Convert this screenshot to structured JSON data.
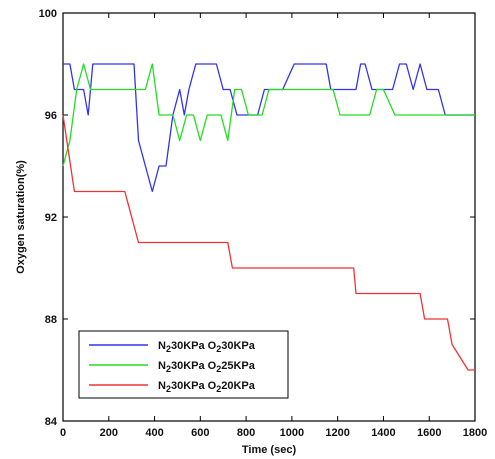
{
  "chart_data": {
    "type": "line",
    "title": "",
    "xlabel": "Time (sec)",
    "ylabel": "Oxygen saturation(%)",
    "xlim": [
      0,
      1800
    ],
    "ylim": [
      84,
      100
    ],
    "xticks": [
      0,
      200,
      400,
      600,
      800,
      1000,
      1200,
      1400,
      1600,
      1800
    ],
    "yticks": [
      84,
      88,
      92,
      96,
      100
    ],
    "grid": false,
    "legend_position": "bottom-left",
    "series": [
      {
        "name": "N230KPa O230KPa",
        "legend": {
          "a": "N",
          "a_sub": "2",
          "b": "30KPa O",
          "b_sub": "2",
          "c": "30KPa"
        },
        "color": "#3333ee",
        "x": [
          0,
          30,
          50,
          90,
          110,
          130,
          160,
          190,
          230,
          260,
          280,
          310,
          330,
          360,
          390,
          420,
          450,
          480,
          510,
          530,
          550,
          580,
          610,
          640,
          670,
          700,
          730,
          760,
          790,
          820,
          850,
          880,
          910,
          960,
          1010,
          1060,
          1110,
          1150,
          1170,
          1210,
          1250,
          1280,
          1300,
          1320,
          1350,
          1370,
          1400,
          1440,
          1470,
          1500,
          1530,
          1560,
          1590,
          1610,
          1640,
          1670,
          1700,
          1740,
          1760,
          1800
        ],
        "values": [
          98,
          98,
          97,
          97,
          96,
          98,
          98,
          98,
          98,
          98,
          98,
          98,
          95,
          94,
          93,
          94,
          94,
          96,
          97,
          96,
          97,
          98,
          98,
          98,
          98,
          97,
          97,
          96,
          96,
          96,
          96,
          97,
          97,
          97,
          98,
          98,
          98,
          98,
          97,
          97,
          97,
          97,
          98,
          98,
          97,
          97,
          97,
          97,
          98,
          98,
          97,
          98,
          97,
          97,
          97,
          96,
          96,
          96,
          96,
          96
        ]
      },
      {
        "name": "N230KPa O225KPa",
        "legend": {
          "a": "N",
          "a_sub": "2",
          "b": "30KPa O",
          "b_sub": "2",
          "c": "25KPa"
        },
        "color": "#22dd22",
        "x": [
          0,
          30,
          60,
          90,
          120,
          150,
          180,
          210,
          240,
          270,
          300,
          330,
          360,
          390,
          420,
          450,
          480,
          510,
          540,
          570,
          600,
          630,
          660,
          690,
          720,
          750,
          780,
          810,
          840,
          870,
          900,
          950,
          1000,
          1050,
          1100,
          1150,
          1180,
          1210,
          1250,
          1280,
          1310,
          1340,
          1370,
          1400,
          1450,
          1500,
          1550,
          1600,
          1650,
          1700,
          1750,
          1800
        ],
        "values": [
          94,
          95,
          97,
          98,
          97,
          97,
          97,
          97,
          97,
          97,
          97,
          97,
          97,
          98,
          96,
          96,
          96,
          95,
          96,
          96,
          95,
          96,
          96,
          96,
          95,
          97,
          97,
          96,
          96,
          96,
          97,
          97,
          97,
          97,
          97,
          97,
          97,
          96,
          96,
          96,
          96,
          96,
          97,
          97,
          96,
          96,
          96,
          96,
          96,
          96,
          96,
          96
        ]
      },
      {
        "name": "N230KPa O220KPa",
        "legend": {
          "a": "N",
          "a_sub": "2",
          "b": "30KPa O",
          "b_sub": "2",
          "c": "20KPa"
        },
        "color": "#ee3333",
        "x": [
          0,
          50,
          270,
          330,
          720,
          740,
          1270,
          1280,
          1560,
          1580,
          1680,
          1700,
          1770,
          1800
        ],
        "values": [
          96,
          93,
          93,
          91,
          91,
          90,
          90,
          89,
          89,
          88,
          88,
          87,
          86,
          86
        ]
      }
    ]
  }
}
